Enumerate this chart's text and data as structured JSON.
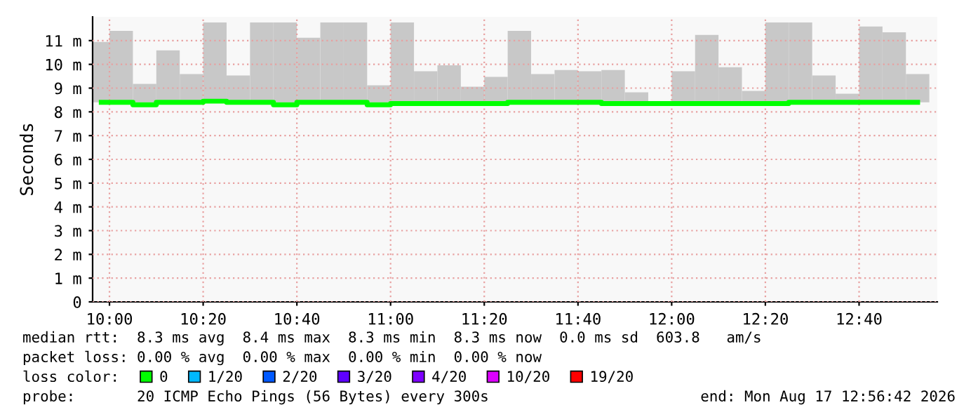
{
  "chart_data": {
    "type": "bar",
    "ylabel": "Seconds",
    "x": [
      9.9708,
      10.0417,
      10.125,
      10.2083,
      10.2917,
      10.375,
      10.4583,
      10.5417,
      10.625,
      10.7083,
      10.7917,
      10.875,
      10.9583,
      11.0417,
      11.125,
      11.2083,
      11.2917,
      11.375,
      11.4583,
      11.5417,
      11.625,
      11.7083,
      11.7917,
      11.875,
      11.9583,
      12.0417,
      12.125,
      12.2083,
      12.2917,
      12.375,
      12.4583,
      12.5417,
      12.625,
      12.7083,
      12.7917,
      12.875
    ],
    "series": [
      {
        "color": "#c8c8c8",
        "base": [
          8.4,
          8.4,
          8.4,
          8.4,
          8.4,
          8.4,
          8.4,
          8.4,
          8.4,
          8.4,
          8.4,
          8.4,
          8.4,
          8.4,
          8.4,
          8.4,
          8.4,
          8.4,
          8.4,
          8.4,
          8.4,
          8.4,
          8.4,
          8.4,
          null,
          8.4,
          8.4,
          8.4,
          8.4,
          8.4,
          8.4,
          8.4,
          8.4,
          8.4,
          8.4,
          8.4
        ],
        "values": [
          2.54,
          3.01,
          0.78,
          2.19,
          1.19,
          3.36,
          1.13,
          3.36,
          3.36,
          2.72,
          3.36,
          3.36,
          0.72,
          3.36,
          1.31,
          1.56,
          0.66,
          1.07,
          3.01,
          1.19,
          1.36,
          1.31,
          1.36,
          0.42,
          null,
          1.31,
          2.84,
          1.48,
          0.48,
          3.36,
          3.36,
          1.13,
          0.36,
          3.19,
          2.95,
          1.19
        ]
      },
      {
        "type": "step",
        "name": "0",
        "color": "#00ff00",
        "values": [
          8.4,
          8.4,
          8.3,
          8.4,
          8.4,
          8.45,
          8.4,
          8.4,
          8.3,
          8.4,
          8.4,
          8.4,
          8.3,
          8.35,
          8.35,
          8.35,
          8.35,
          8.35,
          8.4,
          8.4,
          8.4,
          8.4,
          8.35,
          8.35,
          8.35,
          8.35,
          8.35,
          8.35,
          8.35,
          8.35,
          8.4,
          8.4,
          8.4,
          8.4,
          8.4,
          8.4
        ]
      },
      {
        "type": "step",
        "name": "1/20",
        "color": "#00b8ff",
        "values": [
          null,
          null,
          null,
          null,
          null,
          null,
          null,
          null,
          null,
          null,
          null,
          null,
          null,
          null,
          null,
          null,
          null,
          null,
          null,
          null,
          null,
          null,
          null,
          null,
          null,
          null,
          null,
          null,
          null,
          null,
          null,
          null,
          null,
          null,
          null,
          null
        ]
      },
      {
        "type": "step",
        "name": "2/20",
        "color": "#0059ff",
        "values": [
          null,
          null,
          null,
          null,
          null,
          null,
          null,
          null,
          null,
          null,
          null,
          null,
          null,
          null,
          null,
          null,
          null,
          null,
          null,
          null,
          null,
          null,
          null,
          null,
          null,
          null,
          null,
          null,
          null,
          null,
          null,
          null,
          null,
          null,
          null,
          null
        ]
      },
      {
        "type": "step",
        "name": "3/20",
        "color": "#5e00ff",
        "values": [
          null,
          null,
          null,
          null,
          null,
          null,
          null,
          null,
          null,
          null,
          null,
          null,
          null,
          null,
          null,
          null,
          null,
          null,
          null,
          null,
          null,
          null,
          null,
          null,
          null,
          null,
          null,
          null,
          null,
          null,
          null,
          null,
          null,
          null,
          null,
          null
        ]
      },
      {
        "type": "step",
        "name": "4/20",
        "color": "#7e00ff",
        "values": [
          null,
          null,
          null,
          null,
          null,
          null,
          null,
          null,
          null,
          null,
          null,
          null,
          null,
          null,
          null,
          null,
          null,
          null,
          null,
          null,
          null,
          null,
          null,
          null,
          null,
          null,
          null,
          null,
          null,
          null,
          null,
          null,
          null,
          null,
          null,
          null
        ]
      },
      {
        "type": "step",
        "name": "10/20",
        "color": "#dd00ff",
        "values": [
          null,
          null,
          null,
          null,
          null,
          null,
          null,
          null,
          null,
          null,
          null,
          null,
          null,
          null,
          null,
          null,
          null,
          null,
          null,
          null,
          null,
          null,
          null,
          null,
          null,
          null,
          null,
          null,
          null,
          null,
          null,
          null,
          null,
          null,
          null,
          null
        ]
      },
      {
        "type": "step",
        "name": "19/20",
        "color": "#ff0000",
        "values": [
          null,
          null,
          null,
          null,
          null,
          null,
          null,
          null,
          null,
          null,
          null,
          null,
          null,
          null,
          null,
          null,
          null,
          null,
          null,
          null,
          null,
          null,
          null,
          null,
          null,
          null,
          null,
          null,
          null,
          null,
          null,
          null,
          null,
          null,
          null,
          null
        ]
      }
    ],
    "xlim": [
      9.94,
      12.945
    ],
    "xticks": [
      {
        "value": 10,
        "label": "10:00"
      },
      {
        "value": 10.3333,
        "label": "10:20"
      },
      {
        "value": 10.6667,
        "label": "10:40"
      },
      {
        "value": 11,
        "label": "11:00"
      },
      {
        "value": 11.3333,
        "label": "11:20"
      },
      {
        "value": 11.6667,
        "label": "11:40"
      },
      {
        "value": 12,
        "label": "12:00"
      },
      {
        "value": 12.3333,
        "label": "12:20"
      },
      {
        "value": 12.6667,
        "label": "12:40"
      }
    ],
    "ylim": [
      0,
      12
    ],
    "yticks": [
      {
        "value": 0,
        "label": "0"
      },
      {
        "value": 1,
        "label": "1 m"
      },
      {
        "value": 2,
        "label": "2 m"
      },
      {
        "value": 3,
        "label": "3 m"
      },
      {
        "value": 4,
        "label": "4 m"
      },
      {
        "value": 5,
        "label": "5 m"
      },
      {
        "value": 6,
        "label": "6 m"
      },
      {
        "value": 7,
        "label": "7 m"
      },
      {
        "value": 8,
        "label": "8 m"
      },
      {
        "value": 9,
        "label": "9 m"
      },
      {
        "value": 10,
        "label": "10 m"
      },
      {
        "value": 11,
        "label": "11 m"
      }
    ],
    "grid": true,
    "legend": "bottom",
    "legend_title": "loss color:",
    "annotations": [
      "median rtt:  8.3 ms avg  8.4 ms max  8.3 ms min  8.3 ms now  0.0 ms sd  603.8   am/s",
      "packet loss: 0.00 % avg  0.00 % max  0.00 % min  0.00 % now",
      "probe:       20 ICMP Echo Pings (56 Bytes) every 300s",
      "end: Mon Aug 17 12:56:42 2026"
    ]
  }
}
